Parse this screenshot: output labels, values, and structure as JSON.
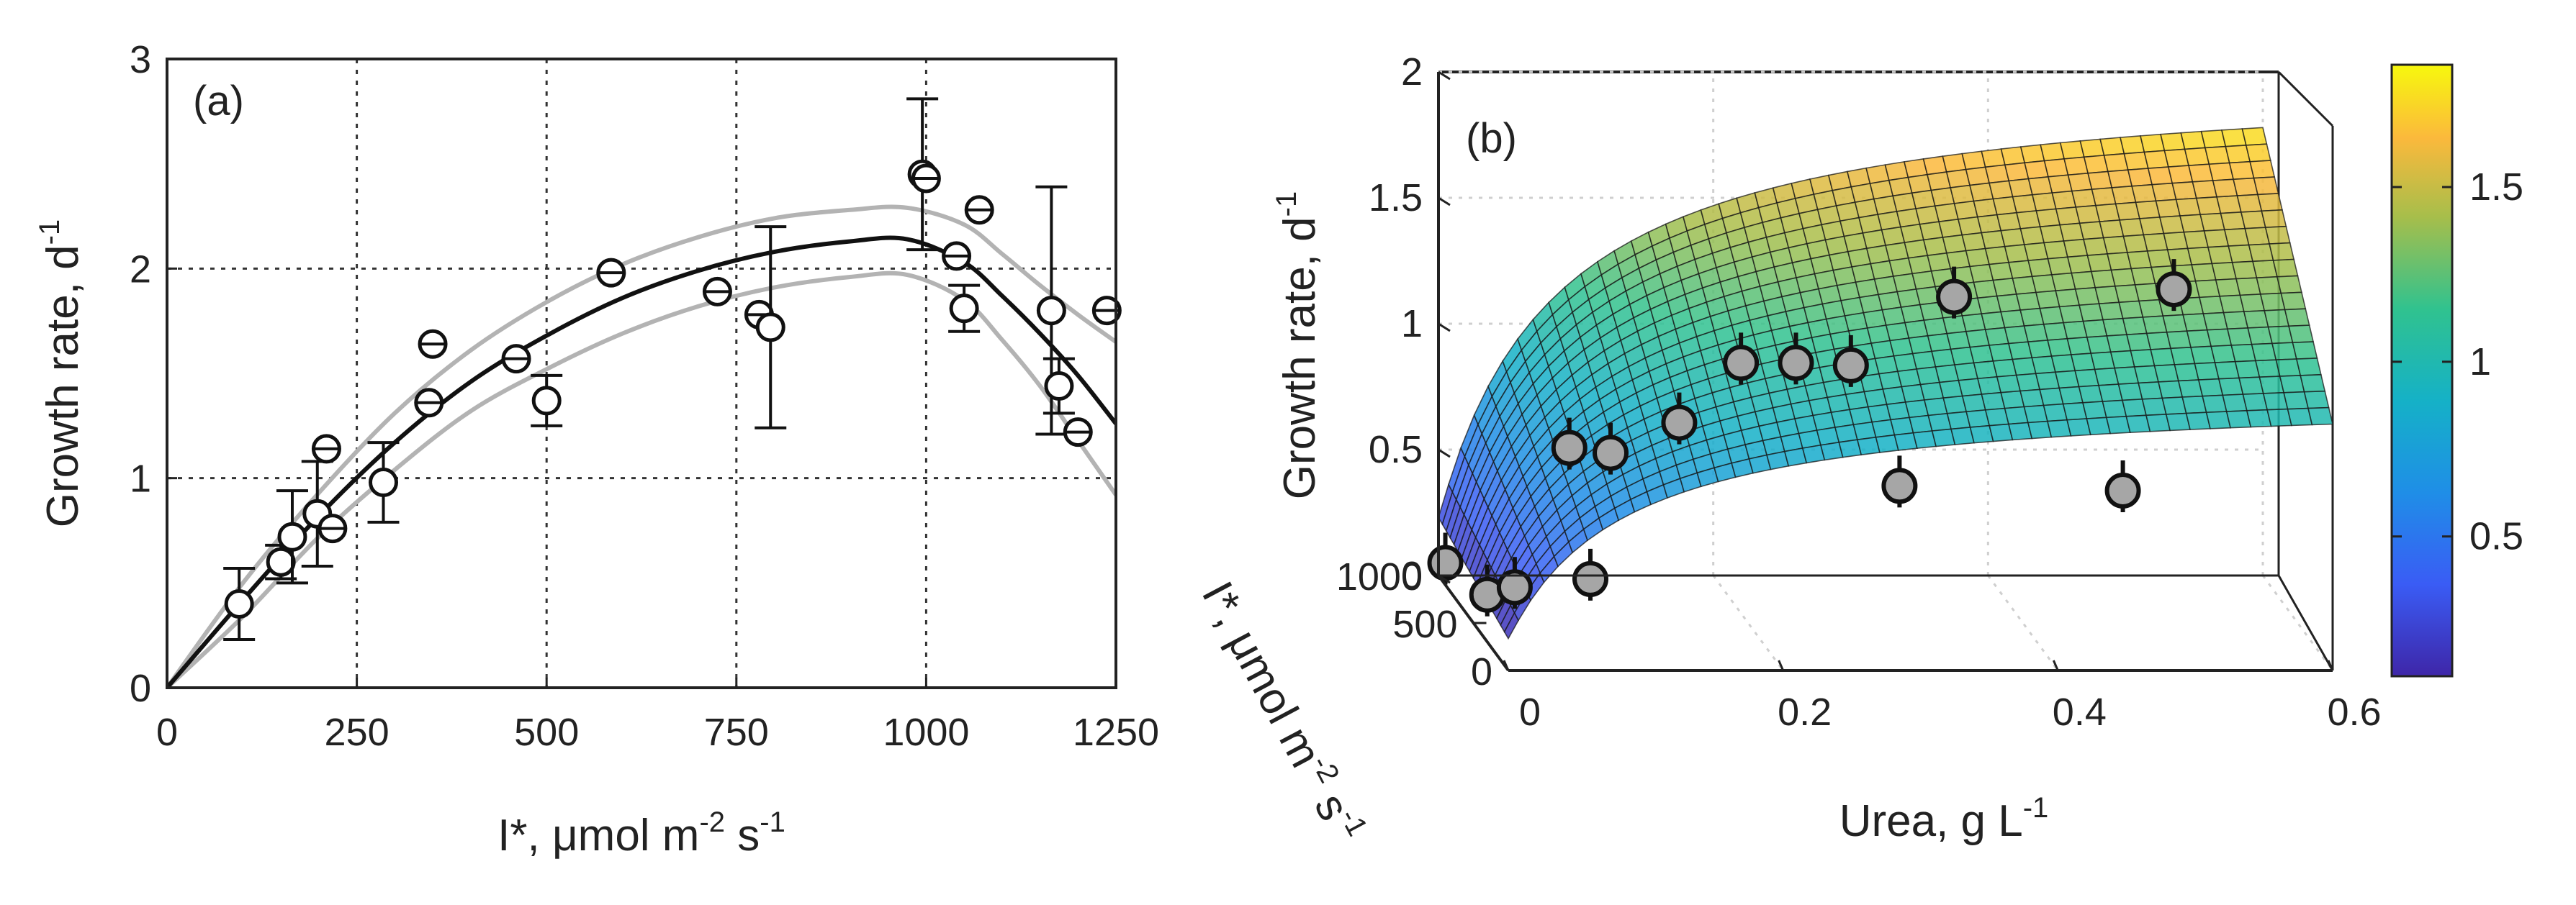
{
  "chart_data": [
    {
      "panel": "(a)",
      "type": "scatter",
      "xlabel": "I*, μmol m",
      "xlabel_sup1": "-2",
      "xlabel_mid": " s",
      "xlabel_sup2": "-1",
      "ylabel": "Growth rate, d",
      "ylabel_sup": "-1",
      "xlim": [
        0,
        1250
      ],
      "ylim": [
        0,
        3
      ],
      "xticks": [
        0,
        250,
        500,
        750,
        1000,
        1250
      ],
      "yticks": [
        0,
        1,
        2,
        3
      ],
      "grid": true,
      "series": [
        {
          "name": "data",
          "marker": "open-circle",
          "points": [
            {
              "x": 95,
              "y": 0.4,
              "err": 0.17
            },
            {
              "x": 150,
              "y": 0.6,
              "err": 0.08
            },
            {
              "x": 165,
              "y": 0.72,
              "err": 0.22
            },
            {
              "x": 198,
              "y": 0.83,
              "err": 0.25
            },
            {
              "x": 210,
              "y": 1.14,
              "err": 0.0
            },
            {
              "x": 218,
              "y": 0.76,
              "err": 0.0
            },
            {
              "x": 285,
              "y": 0.98,
              "err": 0.19
            },
            {
              "x": 345,
              "y": 1.36,
              "err": 0.0
            },
            {
              "x": 350,
              "y": 1.64,
              "err": 0.0
            },
            {
              "x": 460,
              "y": 1.57,
              "err": 0.0
            },
            {
              "x": 500,
              "y": 1.37,
              "err": 0.12
            },
            {
              "x": 585,
              "y": 1.98,
              "err": 0.0
            },
            {
              "x": 725,
              "y": 1.89,
              "err": 0.0
            },
            {
              "x": 780,
              "y": 1.78,
              "err": 0.0
            },
            {
              "x": 795,
              "y": 1.72,
              "err": 0.48
            },
            {
              "x": 995,
              "y": 2.45,
              "err": 0.36
            },
            {
              "x": 1000,
              "y": 2.43,
              "err": 0.0
            },
            {
              "x": 1040,
              "y": 2.06,
              "err": 0.0
            },
            {
              "x": 1050,
              "y": 1.81,
              "err": 0.11
            },
            {
              "x": 1070,
              "y": 2.28,
              "err": 0.0
            },
            {
              "x": 1165,
              "y": 1.8,
              "err": 0.59
            },
            {
              "x": 1175,
              "y": 1.44,
              "err": 0.13
            },
            {
              "x": 1200,
              "y": 1.22,
              "err": 0.0
            },
            {
              "x": 1238,
              "y": 1.8,
              "err": 0.0
            }
          ]
        },
        {
          "name": "fit",
          "color": "#111111",
          "points": [
            [
              0,
              0
            ],
            [
              100,
              0.42
            ],
            [
              200,
              0.82
            ],
            [
              300,
              1.17
            ],
            [
              400,
              1.46
            ],
            [
              500,
              1.68
            ],
            [
              600,
              1.86
            ],
            [
              700,
              1.99
            ],
            [
              800,
              2.08
            ],
            [
              900,
              2.13
            ],
            [
              975,
              2.14
            ],
            [
              1050,
              2.03
            ],
            [
              1100,
              1.87
            ],
            [
              1150,
              1.69
            ],
            [
              1200,
              1.49
            ],
            [
              1250,
              1.26
            ]
          ]
        },
        {
          "name": "upper-ci",
          "color": "#b3b3b3",
          "points": [
            [
              0,
              0
            ],
            [
              100,
              0.5
            ],
            [
              200,
              0.93
            ],
            [
              300,
              1.31
            ],
            [
              400,
              1.61
            ],
            [
              500,
              1.84
            ],
            [
              600,
              2.02
            ],
            [
              700,
              2.15
            ],
            [
              800,
              2.24
            ],
            [
              900,
              2.28
            ],
            [
              975,
              2.29
            ],
            [
              1050,
              2.21
            ],
            [
              1100,
              2.07
            ],
            [
              1150,
              1.92
            ],
            [
              1200,
              1.78
            ],
            [
              1250,
              1.65
            ]
          ]
        },
        {
          "name": "lower-ci",
          "color": "#b3b3b3",
          "points": [
            [
              0,
              0
            ],
            [
              100,
              0.34
            ],
            [
              200,
              0.72
            ],
            [
              300,
              1.04
            ],
            [
              400,
              1.32
            ],
            [
              500,
              1.52
            ],
            [
              600,
              1.69
            ],
            [
              700,
              1.82
            ],
            [
              800,
              1.91
            ],
            [
              900,
              1.96
            ],
            [
              975,
              1.97
            ],
            [
              1050,
              1.85
            ],
            [
              1100,
              1.66
            ],
            [
              1150,
              1.44
            ],
            [
              1200,
              1.18
            ],
            [
              1250,
              0.92
            ]
          ]
        }
      ]
    },
    {
      "panel": "(b)",
      "type": "surface",
      "xlabel": "Urea, g L",
      "xlabel_sup": "-1",
      "ylabel": "I*, μmol m",
      "ylabel_sup1": "-2",
      "ylabel_mid": " s",
      "ylabel_sup2": "-1",
      "zlabel": "Growth rate, d",
      "zlabel_sup": "-1",
      "xlim": [
        0,
        0.6
      ],
      "ylim": [
        0,
        1000
      ],
      "zlim": [
        0,
        2
      ],
      "xticks": [
        0,
        0.2,
        0.4,
        0.6
      ],
      "xtick_labels": [
        "0",
        "0.2",
        "0.4",
        "0.6"
      ],
      "yticks": [
        0,
        500,
        1000
      ],
      "ytick_labels": [
        "0",
        "500",
        "1000"
      ],
      "zticks": [
        0,
        0.5,
        1,
        1.5,
        2
      ],
      "ztick_labels": [
        "0",
        "0.5",
        "1",
        "1.5",
        "2"
      ],
      "colorbar": {
        "range": [
          0.1,
          1.85
        ],
        "ticks": [
          0.5,
          1,
          1.5
        ],
        "tick_labels": [
          "0.5",
          "1",
          "1.5"
        ]
      },
      "points": [
        {
          "x": 0.005,
          "y": 1000,
          "z": 0.05
        },
        {
          "x": 0.005,
          "y": 400,
          "z": 0.15
        },
        {
          "x": 0.025,
          "y": 400,
          "z": 0.18
        },
        {
          "x": 0.075,
          "y": 300,
          "z": 0.25
        },
        {
          "x": 0.08,
          "y": 700,
          "z": 0.62
        },
        {
          "x": 0.11,
          "y": 700,
          "z": 0.6
        },
        {
          "x": 0.16,
          "y": 700,
          "z": 0.72
        },
        {
          "x": 0.21,
          "y": 800,
          "z": 0.92
        },
        {
          "x": 0.25,
          "y": 800,
          "z": 0.92
        },
        {
          "x": 0.29,
          "y": 800,
          "z": 0.91
        },
        {
          "x": 0.3,
          "y": 300,
          "z": 0.62
        },
        {
          "x": 0.36,
          "y": 700,
          "z": 1.22
        },
        {
          "x": 0.46,
          "y": 250,
          "z": 0.62
        },
        {
          "x": 0.52,
          "y": 700,
          "z": 1.25
        }
      ]
    }
  ]
}
